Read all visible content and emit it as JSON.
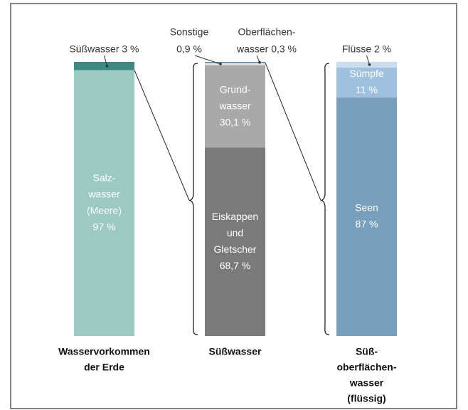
{
  "chart_data": {
    "type": "stacked-columns",
    "columns": [
      {
        "category": [
          "Wasservorkommen",
          "der Erde"
        ],
        "segments": [
          {
            "label": [
              "Salz-",
              "wasser",
              "(Meere)",
              "97 %"
            ],
            "value": 97,
            "color": "#9ccac3",
            "label_position": "inside"
          },
          {
            "label": [
              "Süßwasser 3 %"
            ],
            "value": 3,
            "color": "#3e8a82",
            "label_position": "outside"
          }
        ]
      },
      {
        "category": [
          "Süßwasser"
        ],
        "segments": [
          {
            "label": [
              "Eiskappen",
              "und",
              "Gletscher",
              "68,7 %"
            ],
            "value": 68.7,
            "color": "#7a7a7a",
            "label_position": "inside"
          },
          {
            "label": [
              "Grund-",
              "wasser",
              "30,1 %"
            ],
            "value": 30.1,
            "color": "#a9a9a9",
            "label_position": "inside"
          },
          {
            "label": [
              "Sonstige",
              "0,9 %"
            ],
            "value": 0.9,
            "color": "#dedede",
            "label_position": "outside"
          },
          {
            "label": [
              "Oberflächen-",
              "wasser 0,3 %"
            ],
            "value": 0.3,
            "color": "#4e7e9c",
            "label_position": "outside"
          }
        ]
      },
      {
        "category": [
          "Süß-",
          "oberflächen-",
          "wasser",
          "(flüssig)"
        ],
        "segments": [
          {
            "label": [
              "Seen",
              "87 %"
            ],
            "value": 87,
            "color": "#78a0bd",
            "label_position": "inside"
          },
          {
            "label": [
              "Sümpfe",
              "11 %"
            ],
            "value": 11,
            "color": "#9fc1de",
            "label_position": "inside"
          },
          {
            "label": [
              "Flüsse 2 %"
            ],
            "value": 2,
            "color": "#c9ddef",
            "label_position": "outside"
          }
        ]
      }
    ]
  }
}
